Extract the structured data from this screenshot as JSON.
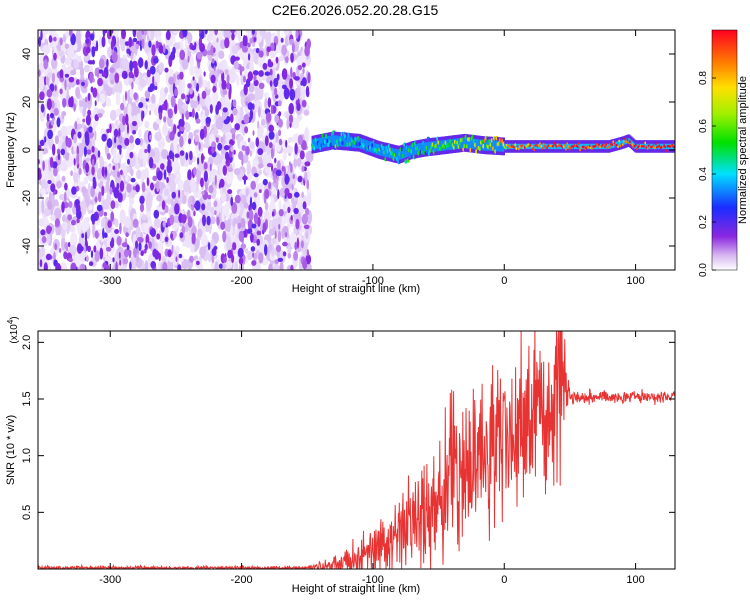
{
  "title": "C2E6.2026.052.20.28.G15",
  "chart_data": [
    {
      "type": "heatmap",
      "xlabel": "Height of straight line (km)",
      "ylabel": "Frequency (Hz)",
      "xlim": [
        -355,
        130
      ],
      "ylim": [
        -50,
        50
      ],
      "x_ticks": [
        -300,
        -200,
        -100,
        0,
        100
      ],
      "y_ticks": [
        -40,
        -20,
        0,
        20,
        40
      ],
      "colorbar": {
        "label": "Normalized spectral amplitude",
        "range": [
          0,
          1
        ],
        "ticks": [
          0.0,
          0.2,
          0.4,
          0.6,
          0.8
        ]
      },
      "regions": [
        {
          "x_range": [
            -355,
            -148
          ],
          "description_value": "noise",
          "amplitude": 0.1
        },
        {
          "x_range": [
            -148,
            130
          ],
          "center_frequency": 2,
          "amplitude": 1.0
        }
      ],
      "signal_trace": {
        "x": [
          -148,
          -130,
          -110,
          -95,
          -80,
          -70,
          -60,
          -45,
          -30,
          -15,
          0,
          30,
          60,
          80,
          90,
          95,
          100,
          130
        ],
        "frequency": [
          2,
          4,
          3,
          0,
          -2,
          0,
          1,
          2,
          3,
          2,
          1.5,
          1.5,
          1.5,
          1.5,
          3,
          4,
          1.5,
          1.5
        ],
        "amplitude": [
          0.35,
          0.4,
          0.4,
          0.4,
          0.45,
          0.45,
          0.5,
          0.55,
          0.6,
          0.7,
          0.8,
          0.9,
          0.95,
          0.95,
          0.9,
          0.9,
          0.95,
          1.0
        ]
      }
    },
    {
      "type": "line",
      "xlabel": "Height of straight line (km)",
      "ylabel": "SNR (10 * v/v)",
      "y_multiplier": "(x10",
      "y_multiplier_exp": "4",
      "y_multiplier_close": ")",
      "xlim": [
        -355,
        130
      ],
      "ylim": [
        0,
        2.1
      ],
      "x_ticks": [
        -300,
        -200,
        -100,
        0,
        100
      ],
      "y_ticks": [
        0.5,
        1.0,
        1.5,
        2.0
      ],
      "y_tick_labels": [
        "0.5",
        "1.0",
        "1.5",
        "2.0"
      ],
      "color": "#e83333",
      "envelope": {
        "x": [
          -355,
          -150,
          -125,
          -100,
          -80,
          -60,
          -40,
          -20,
          0,
          20,
          35,
          40,
          43,
          50,
          100,
          130
        ],
        "mean": [
          0.01,
          0.01,
          0.04,
          0.15,
          0.3,
          0.5,
          0.8,
          1.0,
          1.15,
          1.3,
          1.5,
          1.7,
          1.8,
          1.52,
          1.52,
          1.52
        ],
        "spread": [
          0.01,
          0.01,
          0.05,
          0.12,
          0.2,
          0.28,
          0.35,
          0.4,
          0.4,
          0.4,
          0.4,
          0.4,
          0.35,
          0.03,
          0.03,
          0.03
        ]
      }
    }
  ]
}
